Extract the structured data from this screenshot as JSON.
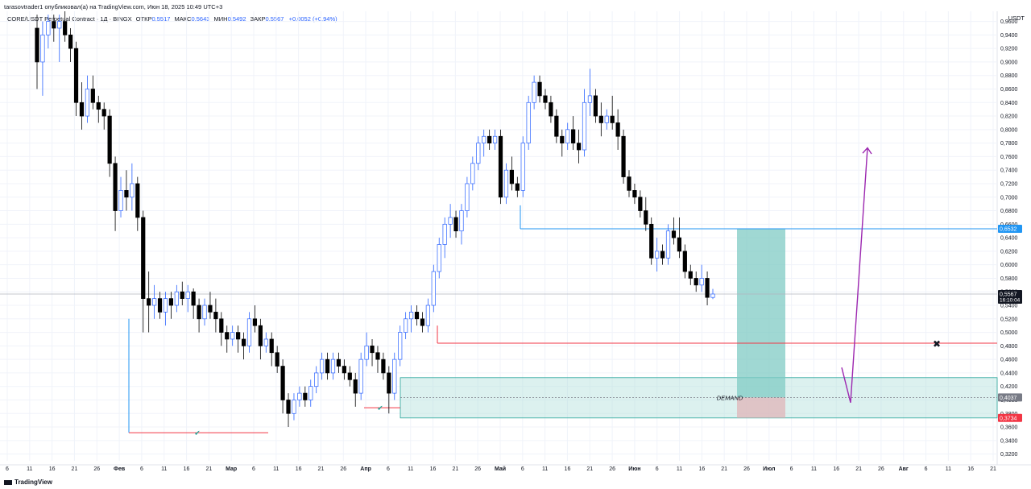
{
  "publisher_line": "tarasovtrader1 опубликовал(а) на TradingView.com, Июн 18, 2025 10:49 UTC+3",
  "header": {
    "symbol": "CORE/USDT Perpetual Contract · 1Д · BINGX",
    "open_label": "ОТКР",
    "open": "0,5517",
    "high_label": "МАКС",
    "high": "0,5643",
    "low_label": "МИН",
    "low": "0,5492",
    "close_label": "ЗАКР",
    "close": "0,5567",
    "change": "+0,0052 (+0,94%)"
  },
  "currency": "USDT",
  "footer": {
    "brand": "TradingView",
    "logo_icon": "tradingview-logo-icon"
  },
  "chart_data": {
    "type": "candlestick",
    "y_ticks": [
      "0,3200",
      "0,3400",
      "0,3600",
      "0,3800",
      "0,4000",
      "0,4200",
      "0,4400",
      "0,4600",
      "0,4800",
      "0,5000",
      "0,5200",
      "0,5400",
      "0,5600",
      "0,5800",
      "0,6000",
      "0,6200",
      "0,6400",
      "0,6600",
      "0,6800",
      "0,7000",
      "0,7200",
      "0,7400",
      "0,7600",
      "0,7800",
      "0,8000",
      "0,8200",
      "0,8400",
      "0,8600",
      "0,8800",
      "0,9000",
      "0,9200",
      "0,9400",
      "0,9600"
    ],
    "ylim": [
      0.31,
      0.975
    ],
    "x_ticks": [
      "6",
      "11",
      "16",
      "21",
      "26",
      "Фев",
      "6",
      "11",
      "16",
      "21",
      "Мар",
      "6",
      "11",
      "16",
      "21",
      "26",
      "Апр",
      "6",
      "11",
      "16",
      "21",
      "26",
      "Май",
      "6",
      "11",
      "16",
      "21",
      "26",
      "Июн",
      "6",
      "11",
      "16",
      "21",
      "26",
      "Июл",
      "6",
      "11",
      "16",
      "21",
      "26",
      "Авг",
      "6",
      "11",
      "16",
      "21"
    ],
    "price_labels": [
      {
        "value": 0.6532,
        "text": "0,6532",
        "color": "#2196f3"
      },
      {
        "value": 0.5567,
        "text": "0,5567",
        "sub": "16:10:04",
        "color": "#131722"
      },
      {
        "value": 0.4037,
        "text": "0,4037",
        "color": "#787b86"
      },
      {
        "value": 0.3734,
        "text": "0,3734",
        "color": "#f23645"
      }
    ],
    "annotations": {
      "demand_label": "DEMAND"
    },
    "colors": {
      "up": "#2962ff",
      "down": "#000000",
      "entry_zone": "#80cbc4",
      "stop_zone": "#e0b4b8",
      "demand_zone": "#b2dfdb",
      "arrow": "#9c27b0",
      "support": "#f23645",
      "resistance": "#2196f3"
    },
    "candles": [
      [
        0.95,
        0.97,
        0.86,
        0.9
      ],
      [
        0.9,
        0.96,
        0.85,
        0.94
      ],
      [
        0.94,
        0.97,
        0.92,
        0.96
      ],
      [
        0.96,
        0.97,
        0.93,
        0.95
      ],
      [
        0.95,
        0.97,
        0.9,
        0.96
      ],
      [
        0.96,
        0.975,
        0.93,
        0.94
      ],
      [
        0.94,
        0.95,
        0.9,
        0.92
      ],
      [
        0.92,
        0.93,
        0.82,
        0.84
      ],
      [
        0.84,
        0.87,
        0.8,
        0.82
      ],
      [
        0.82,
        0.88,
        0.81,
        0.86
      ],
      [
        0.86,
        0.88,
        0.83,
        0.84
      ],
      [
        0.84,
        0.85,
        0.81,
        0.83
      ],
      [
        0.83,
        0.84,
        0.8,
        0.82
      ],
      [
        0.82,
        0.83,
        0.73,
        0.75
      ],
      [
        0.75,
        0.76,
        0.65,
        0.68
      ],
      [
        0.68,
        0.73,
        0.67,
        0.71
      ],
      [
        0.71,
        0.74,
        0.68,
        0.7
      ],
      [
        0.7,
        0.75,
        0.68,
        0.72
      ],
      [
        0.72,
        0.73,
        0.65,
        0.67
      ],
      [
        0.67,
        0.68,
        0.5,
        0.55
      ],
      [
        0.55,
        0.59,
        0.5,
        0.54
      ],
      [
        0.54,
        0.57,
        0.52,
        0.55
      ],
      [
        0.55,
        0.56,
        0.52,
        0.53
      ],
      [
        0.53,
        0.56,
        0.51,
        0.55
      ],
      [
        0.55,
        0.56,
        0.52,
        0.54
      ],
      [
        0.54,
        0.57,
        0.53,
        0.56
      ],
      [
        0.56,
        0.575,
        0.54,
        0.55
      ],
      [
        0.55,
        0.57,
        0.53,
        0.56
      ],
      [
        0.56,
        0.565,
        0.52,
        0.54
      ],
      [
        0.54,
        0.55,
        0.5,
        0.52
      ],
      [
        0.52,
        0.55,
        0.51,
        0.54
      ],
      [
        0.54,
        0.56,
        0.52,
        0.53
      ],
      [
        0.53,
        0.55,
        0.5,
        0.52
      ],
      [
        0.52,
        0.53,
        0.48,
        0.5
      ],
      [
        0.5,
        0.51,
        0.47,
        0.49
      ],
      [
        0.49,
        0.51,
        0.48,
        0.5
      ],
      [
        0.5,
        0.51,
        0.47,
        0.49
      ],
      [
        0.49,
        0.5,
        0.46,
        0.48
      ],
      [
        0.48,
        0.53,
        0.47,
        0.52
      ],
      [
        0.52,
        0.54,
        0.5,
        0.51
      ],
      [
        0.51,
        0.52,
        0.46,
        0.48
      ],
      [
        0.48,
        0.5,
        0.47,
        0.49
      ],
      [
        0.49,
        0.5,
        0.45,
        0.47
      ],
      [
        0.47,
        0.48,
        0.44,
        0.45
      ],
      [
        0.45,
        0.46,
        0.38,
        0.4
      ],
      [
        0.4,
        0.41,
        0.36,
        0.38
      ],
      [
        0.38,
        0.41,
        0.37,
        0.4
      ],
      [
        0.4,
        0.42,
        0.39,
        0.41
      ],
      [
        0.41,
        0.42,
        0.39,
        0.4
      ],
      [
        0.4,
        0.43,
        0.39,
        0.42
      ],
      [
        0.42,
        0.45,
        0.41,
        0.44
      ],
      [
        0.44,
        0.47,
        0.43,
        0.46
      ],
      [
        0.46,
        0.47,
        0.43,
        0.44
      ],
      [
        0.44,
        0.47,
        0.43,
        0.46
      ],
      [
        0.46,
        0.47,
        0.44,
        0.45
      ],
      [
        0.45,
        0.46,
        0.43,
        0.44
      ],
      [
        0.44,
        0.45,
        0.42,
        0.43
      ],
      [
        0.43,
        0.44,
        0.39,
        0.41
      ],
      [
        0.41,
        0.47,
        0.4,
        0.46
      ],
      [
        0.46,
        0.5,
        0.45,
        0.48
      ],
      [
        0.48,
        0.49,
        0.45,
        0.47
      ],
      [
        0.47,
        0.48,
        0.44,
        0.46
      ],
      [
        0.46,
        0.47,
        0.43,
        0.44
      ],
      [
        0.44,
        0.45,
        0.38,
        0.41
      ],
      [
        0.41,
        0.47,
        0.4,
        0.46
      ],
      [
        0.46,
        0.51,
        0.45,
        0.5
      ],
      [
        0.5,
        0.53,
        0.49,
        0.52
      ],
      [
        0.52,
        0.54,
        0.5,
        0.53
      ],
      [
        0.53,
        0.54,
        0.51,
        0.52
      ],
      [
        0.52,
        0.53,
        0.5,
        0.51
      ],
      [
        0.51,
        0.55,
        0.5,
        0.54
      ],
      [
        0.54,
        0.6,
        0.53,
        0.59
      ],
      [
        0.59,
        0.64,
        0.58,
        0.63
      ],
      [
        0.63,
        0.67,
        0.61,
        0.66
      ],
      [
        0.66,
        0.69,
        0.64,
        0.67
      ],
      [
        0.67,
        0.68,
        0.64,
        0.65
      ],
      [
        0.65,
        0.69,
        0.63,
        0.68
      ],
      [
        0.68,
        0.73,
        0.67,
        0.72
      ],
      [
        0.72,
        0.76,
        0.71,
        0.75
      ],
      [
        0.75,
        0.79,
        0.74,
        0.78
      ],
      [
        0.78,
        0.8,
        0.76,
        0.79
      ],
      [
        0.79,
        0.8,
        0.77,
        0.78
      ],
      [
        0.78,
        0.8,
        0.77,
        0.79
      ],
      [
        0.79,
        0.8,
        0.69,
        0.7
      ],
      [
        0.7,
        0.75,
        0.69,
        0.74
      ],
      [
        0.74,
        0.76,
        0.71,
        0.72
      ],
      [
        0.72,
        0.73,
        0.7,
        0.71
      ],
      [
        0.71,
        0.79,
        0.7,
        0.78
      ],
      [
        0.78,
        0.85,
        0.77,
        0.84
      ],
      [
        0.84,
        0.88,
        0.83,
        0.87
      ],
      [
        0.87,
        0.88,
        0.84,
        0.85
      ],
      [
        0.85,
        0.86,
        0.83,
        0.84
      ],
      [
        0.84,
        0.85,
        0.81,
        0.82
      ],
      [
        0.82,
        0.83,
        0.78,
        0.79
      ],
      [
        0.79,
        0.8,
        0.76,
        0.78
      ],
      [
        0.78,
        0.81,
        0.77,
        0.8
      ],
      [
        0.8,
        0.82,
        0.77,
        0.78
      ],
      [
        0.78,
        0.8,
        0.75,
        0.77
      ],
      [
        0.77,
        0.86,
        0.76,
        0.84
      ],
      [
        0.84,
        0.89,
        0.82,
        0.85
      ],
      [
        0.85,
        0.86,
        0.81,
        0.82
      ],
      [
        0.82,
        0.84,
        0.79,
        0.81
      ],
      [
        0.81,
        0.83,
        0.8,
        0.82
      ],
      [
        0.82,
        0.85,
        0.8,
        0.81
      ],
      [
        0.81,
        0.83,
        0.77,
        0.79
      ],
      [
        0.79,
        0.8,
        0.72,
        0.73
      ],
      [
        0.73,
        0.74,
        0.7,
        0.71
      ],
      [
        0.71,
        0.72,
        0.69,
        0.7
      ],
      [
        0.7,
        0.71,
        0.67,
        0.68
      ],
      [
        0.68,
        0.7,
        0.65,
        0.66
      ],
      [
        0.66,
        0.67,
        0.6,
        0.61
      ],
      [
        0.61,
        0.64,
        0.59,
        0.62
      ],
      [
        0.62,
        0.63,
        0.6,
        0.61
      ],
      [
        0.61,
        0.66,
        0.6,
        0.65
      ],
      [
        0.65,
        0.67,
        0.63,
        0.64
      ],
      [
        0.64,
        0.67,
        0.61,
        0.62
      ],
      [
        0.62,
        0.63,
        0.58,
        0.59
      ],
      [
        0.59,
        0.6,
        0.57,
        0.58
      ],
      [
        0.58,
        0.59,
        0.56,
        0.57
      ],
      [
        0.57,
        0.6,
        0.56,
        0.58
      ],
      [
        0.58,
        0.59,
        0.54,
        0.5517
      ],
      [
        0.5517,
        0.5643,
        0.5492,
        0.5567
      ]
    ]
  }
}
